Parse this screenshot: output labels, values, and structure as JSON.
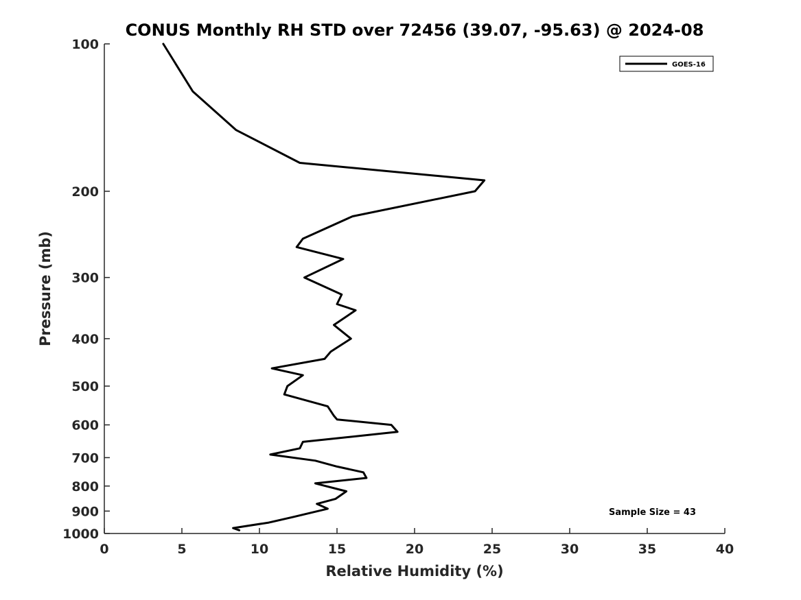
{
  "chart_data": {
    "type": "line",
    "title": "CONUS Monthly RH STD over 72456 (39.07, -95.63) @ 2024-08",
    "xlabel": "Relative Humidity (%)",
    "ylabel": "Pressure (mb)",
    "xlim": [
      0,
      40
    ],
    "ylim": [
      1000,
      100
    ],
    "yscale": "log",
    "y_reversed": true,
    "xticks": [
      "0",
      "5",
      "10",
      "15",
      "20",
      "25",
      "30",
      "35",
      "40"
    ],
    "yticks": [
      "100",
      "200",
      "300",
      "400",
      "500",
      "600",
      "700",
      "800",
      "900",
      "1000"
    ],
    "grid": false,
    "legend": {
      "location": "top-right",
      "entries": [
        "GOES-16"
      ]
    },
    "annotation": "Sample Size = 43",
    "series": [
      {
        "name": "GOES-16",
        "color": "#000000",
        "points": [
          [
            3.8,
            100
          ],
          [
            5.7,
            125
          ],
          [
            8.5,
            150
          ],
          [
            12.6,
            175
          ],
          [
            24.5,
            190
          ],
          [
            23.9,
            200
          ],
          [
            16.0,
            225
          ],
          [
            12.8,
            250
          ],
          [
            12.4,
            260
          ],
          [
            15.4,
            275
          ],
          [
            12.9,
            300
          ],
          [
            15.3,
            325
          ],
          [
            15.0,
            340
          ],
          [
            16.2,
            350
          ],
          [
            14.8,
            375
          ],
          [
            15.9,
            400
          ],
          [
            14.6,
            425
          ],
          [
            14.2,
            440
          ],
          [
            10.8,
            460
          ],
          [
            12.8,
            475
          ],
          [
            11.8,
            500
          ],
          [
            11.6,
            520
          ],
          [
            14.4,
            550
          ],
          [
            14.8,
            575
          ],
          [
            15.0,
            585
          ],
          [
            18.5,
            600
          ],
          [
            18.9,
            620
          ],
          [
            12.8,
            650
          ],
          [
            12.6,
            670
          ],
          [
            10.7,
            690
          ],
          [
            13.6,
            710
          ],
          [
            15.0,
            730
          ],
          [
            16.7,
            750
          ],
          [
            16.9,
            770
          ],
          [
            13.6,
            790
          ],
          [
            15.6,
            820
          ],
          [
            14.9,
            850
          ],
          [
            13.7,
            870
          ],
          [
            14.4,
            890
          ],
          [
            12.2,
            925
          ],
          [
            10.6,
            950
          ],
          [
            8.3,
            975
          ],
          [
            8.7,
            985
          ]
        ]
      }
    ]
  }
}
